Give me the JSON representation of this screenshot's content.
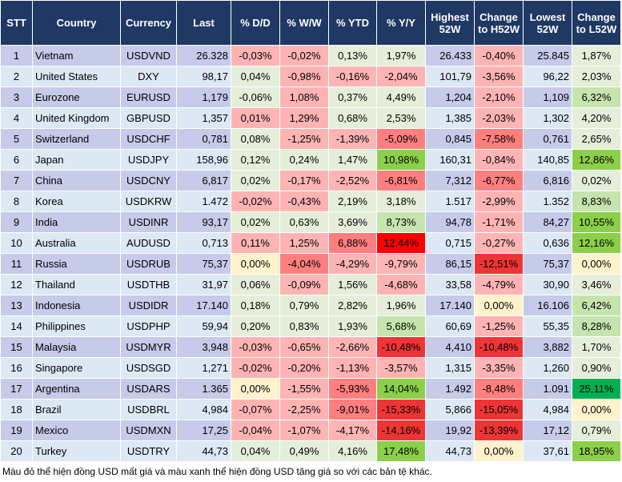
{
  "headers": [
    "STT",
    "Country",
    "Currency",
    "Last",
    "% D/D",
    "% W/W",
    "% YTD",
    "% Y/Y",
    "Highest 52W",
    "Change to H52W",
    "Lowest 52W",
    "Change to L52W"
  ],
  "colors": {
    "header_bg": "#1f3864",
    "odd_row": "#c5cbe9",
    "even_row": "#dde8f5",
    "light_red": "#ffb4b4",
    "medium_red": "#ff7e7e",
    "strong_red": "#ee3535",
    "pure_red": "#ff0000",
    "pale_green": "#e4eed9",
    "light_green": "#c6e4ae",
    "green": "#8ccf4a",
    "strong_green": "#00b050",
    "neutral_yellow": "#fff2cc"
  },
  "rows": [
    {
      "stt": "1",
      "country": "Vietnam",
      "currency": "USDVND",
      "last": "26.328",
      "dd": "-0,03%",
      "ww": "-0,02%",
      "ytd": "0,13%",
      "yy": "1,97%",
      "high": "26.433",
      "ch": "-0,40%",
      "low": "25.845",
      "cl": "1,87%",
      "tone": [
        "p",
        "p",
        "g0",
        "g0",
        "p",
        "g0"
      ]
    },
    {
      "stt": "2",
      "country": "United States",
      "currency": "DXY",
      "last": "98,17",
      "dd": "0,04%",
      "ww": "-0,98%",
      "ytd": "-0,16%",
      "yy": "-2,04%",
      "high": "101,79",
      "ch": "-3,56%",
      "low": "96,22",
      "cl": "2,03%",
      "tone": [
        "g0",
        "p",
        "p",
        "p",
        "p",
        "g0"
      ]
    },
    {
      "stt": "3",
      "country": "Eurozone",
      "currency": "EURUSD",
      "last": "1,179",
      "dd": "-0,06%",
      "ww": "1,08%",
      "ytd": "0,37%",
      "yy": "4,49%",
      "high": "1,204",
      "ch": "-2,10%",
      "low": "1,109",
      "cl": "6,32%",
      "tone": [
        "g0",
        "p",
        "g0",
        "g0",
        "p",
        "g1"
      ]
    },
    {
      "stt": "4",
      "country": "United Kingdom",
      "currency": "GBPUSD",
      "last": "1,357",
      "dd": "0,01%",
      "ww": "1,29%",
      "ytd": "0,68%",
      "yy": "2,53%",
      "high": "1,385",
      "ch": "-2,03%",
      "low": "1,302",
      "cl": "4,20%",
      "tone": [
        "p",
        "p",
        "g0",
        "g0",
        "p",
        "g0"
      ]
    },
    {
      "stt": "5",
      "country": "Switzerland",
      "currency": "USDCHF",
      "last": "0,781",
      "dd": "0,08%",
      "ww": "-1,25%",
      "ytd": "-1,39%",
      "yy": "-5,09%",
      "high": "0,845",
      "ch": "-7,58%",
      "low": "0,761",
      "cl": "2,65%",
      "tone": [
        "g0",
        "p",
        "p",
        "r2",
        "r2",
        "g0"
      ]
    },
    {
      "stt": "6",
      "country": "Japan",
      "currency": "USDJPY",
      "last": "158,96",
      "dd": "0,12%",
      "ww": "0,24%",
      "ytd": "1,47%",
      "yy": "10,98%",
      "high": "160,31",
      "ch": "-0,84%",
      "low": "140,85",
      "cl": "12,86%",
      "tone": [
        "g0",
        "g0",
        "g0",
        "g2",
        "p",
        "g2"
      ]
    },
    {
      "stt": "7",
      "country": "China",
      "currency": "USDCNY",
      "last": "6,817",
      "dd": "0,02%",
      "ww": "-0,17%",
      "ytd": "-2,52%",
      "yy": "-6,81%",
      "high": "7,312",
      "ch": "-6,77%",
      "low": "6,816",
      "cl": "0,02%",
      "tone": [
        "g0",
        "p",
        "p",
        "r2",
        "r2",
        "g0"
      ]
    },
    {
      "stt": "8",
      "country": "Korea",
      "currency": "USDKRW",
      "last": "1.472",
      "dd": "-0,02%",
      "ww": "-0,43%",
      "ytd": "2,19%",
      "yy": "3,18%",
      "high": "1.517",
      "ch": "-2,99%",
      "low": "1.352",
      "cl": "8,83%",
      "tone": [
        "p",
        "p",
        "g0",
        "g0",
        "p",
        "g1"
      ]
    },
    {
      "stt": "9",
      "country": "India",
      "currency": "USDINR",
      "last": "93,17",
      "dd": "0,02%",
      "ww": "0,63%",
      "ytd": "3,69%",
      "yy": "8,73%",
      "high": "94,78",
      "ch": "-1,71%",
      "low": "84,27",
      "cl": "10,55%",
      "tone": [
        "g0",
        "g0",
        "g0",
        "g1",
        "p",
        "g2"
      ]
    },
    {
      "stt": "10",
      "country": "Australia",
      "currency": "AUDUSD",
      "last": "0,713",
      "dd": "0,11%",
      "ww": "1,25%",
      "ytd": "6,88%",
      "yy": "12,44%",
      "high": "0,715",
      "ch": "-0,27%",
      "low": "0,636",
      "cl": "12,16%",
      "tone": [
        "p",
        "p",
        "r2",
        "r4",
        "p",
        "g2"
      ]
    },
    {
      "stt": "11",
      "country": "Russia",
      "currency": "USDRUB",
      "last": "75,37",
      "dd": "0,00%",
      "ww": "-4,04%",
      "ytd": "-4,29%",
      "yy": "-9,79%",
      "high": "86,15",
      "ch": "-12,51%",
      "low": "75,37",
      "cl": "0,00%",
      "tone": [
        "y",
        "r2",
        "p",
        "p",
        "r3",
        "y"
      ]
    },
    {
      "stt": "12",
      "country": "Thailand",
      "currency": "USDTHB",
      "last": "31,97",
      "dd": "0,06%",
      "ww": "-0,09%",
      "ytd": "1,56%",
      "yy": "-4,68%",
      "high": "33,58",
      "ch": "-4,79%",
      "low": "30,90",
      "cl": "3,46%",
      "tone": [
        "g0",
        "p",
        "g0",
        "p",
        "p",
        "g0"
      ]
    },
    {
      "stt": "13",
      "country": "Indonesia",
      "currency": "USDIDR",
      "last": "17.140",
      "dd": "0,18%",
      "ww": "0,79%",
      "ytd": "2,82%",
      "yy": "1,96%",
      "high": "17.140",
      "ch": "0,00%",
      "low": "16.106",
      "cl": "6,42%",
      "tone": [
        "g0",
        "g0",
        "g0",
        "g0",
        "y",
        "g1"
      ]
    },
    {
      "stt": "14",
      "country": "Philippines",
      "currency": "USDPHP",
      "last": "59,94",
      "dd": "0,20%",
      "ww": "0,83%",
      "ytd": "1,93%",
      "yy": "5,68%",
      "high": "60,69",
      "ch": "-1,25%",
      "low": "55,35",
      "cl": "8,28%",
      "tone": [
        "g0",
        "g0",
        "g0",
        "g1",
        "p",
        "g1"
      ]
    },
    {
      "stt": "15",
      "country": "Malaysia",
      "currency": "USDMYR",
      "last": "3,948",
      "dd": "-0,03%",
      "ww": "-0,65%",
      "ytd": "-2,66%",
      "yy": "-10,48%",
      "high": "4,410",
      "ch": "-10,48%",
      "low": "3,882",
      "cl": "1,70%",
      "tone": [
        "p",
        "p",
        "p",
        "r3",
        "r3",
        "g0"
      ]
    },
    {
      "stt": "16",
      "country": "Singapore",
      "currency": "USDSGD",
      "last": "1,271",
      "dd": "-0,02%",
      "ww": "-0,20%",
      "ytd": "-1,13%",
      "yy": "-3,57%",
      "high": "1,315",
      "ch": "-3,35%",
      "low": "1,260",
      "cl": "0,90%",
      "tone": [
        "p",
        "p",
        "p",
        "p",
        "p",
        "g0"
      ]
    },
    {
      "stt": "17",
      "country": "Argentina",
      "currency": "USDARS",
      "last": "1.365",
      "dd": "0,00%",
      "ww": "-1,55%",
      "ytd": "-5,93%",
      "yy": "14,04%",
      "high": "1.492",
      "ch": "-8,48%",
      "low": "1.091",
      "cl": "25,11%",
      "tone": [
        "y",
        "p",
        "r2",
        "g2",
        "r2",
        "g3"
      ]
    },
    {
      "stt": "18",
      "country": "Brazil",
      "currency": "USDBRL",
      "last": "4,984",
      "dd": "-0,07%",
      "ww": "-2,25%",
      "ytd": "-9,01%",
      "yy": "-15,33%",
      "high": "5,866",
      "ch": "-15,05%",
      "low": "4,984",
      "cl": "0,00%",
      "tone": [
        "p",
        "p",
        "r2",
        "r3",
        "r3",
        "y"
      ]
    },
    {
      "stt": "19",
      "country": "Mexico",
      "currency": "USDMXN",
      "last": "17,25",
      "dd": "-0,04%",
      "ww": "-1,07%",
      "ytd": "-4,17%",
      "yy": "-14,16%",
      "high": "19,92",
      "ch": "-13,39%",
      "low": "17,12",
      "cl": "0,79%",
      "tone": [
        "p",
        "p",
        "p",
        "r3",
        "r3",
        "g0"
      ]
    },
    {
      "stt": "20",
      "country": "Turkey",
      "currency": "USDTRY",
      "last": "44,73",
      "dd": "0,04%",
      "ww": "0,49%",
      "ytd": "4,16%",
      "yy": "17,48%",
      "high": "44,73",
      "ch": "0,00%",
      "low": "37,61",
      "cl": "18,95%",
      "tone": [
        "g0",
        "g0",
        "g0",
        "g2",
        "y",
        "g2"
      ]
    }
  ],
  "caption": "Màu đỏ thể hiện đồng USD mất giá và màu xanh thể hiện đồng USD tăng giá so với các bản tệ khác."
}
